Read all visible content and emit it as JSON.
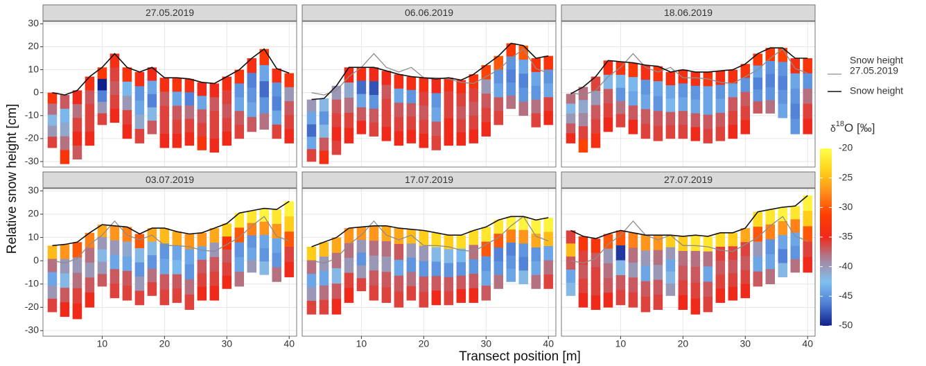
{
  "chart_data": {
    "type": "stacked_column_facets",
    "x_label": "Transect position [m]",
    "y_label": "Relative snow height [cm]",
    "xlim": [
      0.5,
      41.2
    ],
    "xticks": [
      10,
      20,
      30,
      40
    ],
    "ylim": [
      -32.4,
      31
    ],
    "yticks": [
      -30,
      -20,
      -10,
      0,
      10,
      20,
      30
    ],
    "grid": true,
    "x": [
      2,
      4,
      6,
      8,
      10,
      12,
      14,
      16,
      18,
      20,
      22,
      24,
      26,
      28,
      30,
      32,
      34,
      36,
      38,
      40
    ],
    "line": {
      "name": "Snow height",
      "color": "#111111"
    },
    "reference": {
      "name_lines": [
        "Snow height",
        "27.05.2019"
      ],
      "color": "#8c8c8c",
      "values": [
        0,
        -1,
        1,
        7,
        11,
        17,
        11,
        9,
        11,
        6.5,
        6.5,
        6,
        4.5,
        4,
        7,
        10,
        15,
        19,
        10.5,
        8.5
      ]
    },
    "colorbar": {
      "title": {
        "pre": "δ",
        "sup": "18",
        "post": "O [‰]"
      },
      "lim": [
        -50,
        -20
      ],
      "ticks": [
        -20,
        -25,
        -30,
        -35,
        -40,
        -45,
        -50
      ],
      "colors": [
        "#10208b",
        "#4f7fd6",
        "#80c0f0",
        "#a8839b",
        "#f02a1a",
        "#ff3d00",
        "#ff8c1a",
        "#ffd21a",
        "#ffff4a"
      ]
    },
    "facets": [
      {
        "title": "27.05.2019",
        "snow_height": [
          0,
          -1,
          1,
          7,
          11,
          17,
          11,
          9,
          11,
          6.5,
          6.5,
          6,
          4.5,
          4,
          7,
          10,
          15,
          19,
          10.5,
          8.5
        ],
        "bottom": [
          -24,
          -31,
          -29,
          -23,
          -14,
          -13,
          -20,
          -22,
          -18,
          -24,
          -24,
          -23,
          -25,
          -26,
          -23,
          -20,
          -17,
          -16,
          -20,
          -22
        ],
        "d18O": [
          [
            -33,
            -38,
            -42,
            -40,
            -36
          ],
          [
            -37,
            -43,
            -41,
            -38,
            -33
          ],
          [
            -35,
            -38,
            -36,
            -35,
            -37
          ],
          [
            -34,
            -37,
            -36,
            -36,
            -35
          ],
          [
            -32,
            -50,
            -46,
            -40,
            -36
          ],
          [
            -34,
            -36,
            -37,
            -36,
            -35
          ],
          [
            -33,
            -43,
            -40,
            -36,
            -35
          ],
          [
            -34,
            -45,
            -44,
            -41,
            -36
          ],
          [
            -35,
            -44,
            -46,
            -42,
            -37
          ],
          [
            -34,
            -37,
            -36,
            -36,
            -35
          ],
          [
            -33,
            -44,
            -37,
            -36,
            -35
          ],
          [
            -34,
            -46,
            -38,
            -36,
            -35
          ],
          [
            -35,
            -44,
            -37,
            -36,
            -33
          ],
          [
            -35,
            -37,
            -36,
            -36,
            -35
          ],
          [
            -34,
            -36,
            -37,
            -36,
            -35
          ],
          [
            -33,
            -45,
            -44,
            -37,
            -36
          ],
          [
            -34,
            -46,
            -45,
            -44,
            -37
          ],
          [
            -32,
            -44,
            -47,
            -45,
            -38
          ],
          [
            -34,
            -45,
            -46,
            -44,
            -36
          ],
          [
            -33,
            -40,
            -37,
            -36,
            -35
          ]
        ]
      },
      {
        "title": "06.06.2019",
        "snow_height": [
          -3,
          -2.5,
          3,
          11,
          11,
          11,
          9.5,
          8,
          7,
          6.5,
          6,
          6.5,
          5.5,
          8,
          12,
          16,
          21.5,
          20.5,
          15,
          16
        ],
        "bottom": [
          -30,
          -31,
          -27,
          -22,
          -18,
          -19,
          -21,
          -23,
          -22,
          -24,
          -25,
          -23,
          -23,
          -22,
          -19,
          -14,
          -7,
          -10,
          -15,
          -14
        ],
        "d18O": [
          [
            -40,
            -44,
            -47,
            -44,
            -36
          ],
          [
            -42,
            -45,
            -42,
            -37,
            -34
          ],
          [
            -40,
            -37,
            -36,
            -35,
            -36
          ],
          [
            -35,
            -41,
            -38,
            -36,
            -35
          ],
          [
            -34,
            -47,
            -44,
            -37,
            -35
          ],
          [
            -35,
            -48,
            -45,
            -37,
            -36
          ],
          [
            -35,
            -37,
            -36,
            -36,
            -35
          ],
          [
            -34,
            -44,
            -37,
            -36,
            -35
          ],
          [
            -34,
            -45,
            -37,
            -36,
            -35
          ],
          [
            -34,
            -36,
            -37,
            -36,
            -35
          ],
          [
            -35,
            -45,
            -44,
            -37,
            -36
          ],
          [
            -34,
            -36,
            -36,
            -35,
            -35
          ],
          [
            -34,
            -36,
            -37,
            -36,
            -35
          ],
          [
            -33,
            -36,
            -37,
            -36,
            -35
          ],
          [
            -31,
            -40,
            -37,
            -36,
            -35
          ],
          [
            -30,
            -45,
            -44,
            -37,
            -36
          ],
          [
            -32,
            -45,
            -46,
            -45,
            -38
          ],
          [
            -30,
            -44,
            -46,
            -45,
            -38
          ],
          [
            -33,
            -44,
            -45,
            -38,
            -36
          ],
          [
            -33,
            -45,
            -44,
            -36,
            -35
          ]
        ]
      },
      {
        "title": "18.06.2019",
        "snow_height": [
          -0.5,
          2.5,
          7,
          14,
          13.5,
          13,
          12,
          11.5,
          9,
          10,
          9,
          9,
          9.5,
          10,
          12.5,
          17,
          19.5,
          19.5,
          15,
          15
        ],
        "bottom": [
          -22,
          -26,
          -24,
          -17,
          -15,
          -18,
          -20,
          -21,
          -20,
          -20,
          -21,
          -22,
          -21,
          -20,
          -18,
          -9,
          -9,
          -11,
          -18,
          -18
        ],
        "d18O": [
          [
            -38,
            -42,
            -40,
            -37,
            -35
          ],
          [
            -38,
            -41,
            -39,
            -36,
            -31
          ],
          [
            -36,
            -40,
            -37,
            -36,
            -34
          ],
          [
            -34,
            -42,
            -37,
            -36,
            -35
          ],
          [
            -33,
            -43,
            -45,
            -38,
            -36
          ],
          [
            -32,
            -43,
            -44,
            -37,
            -35
          ],
          [
            -34,
            -45,
            -44,
            -37,
            -36
          ],
          [
            -33,
            -44,
            -45,
            -37,
            -36
          ],
          [
            -34,
            -44,
            -43,
            -37,
            -36
          ],
          [
            -34,
            -45,
            -44,
            -37,
            -36
          ],
          [
            -34,
            -45,
            -44,
            -37,
            -35
          ],
          [
            -33,
            -44,
            -44,
            -37,
            -36
          ],
          [
            -34,
            -45,
            -44,
            -37,
            -36
          ],
          [
            -34,
            -44,
            -37,
            -36,
            -35
          ],
          [
            -33,
            -45,
            -37,
            -36,
            -35
          ],
          [
            -32,
            -44,
            -46,
            -45,
            -37
          ],
          [
            -32,
            -45,
            -46,
            -45,
            -38
          ],
          [
            -31,
            -45,
            -46,
            -45,
            -44
          ],
          [
            -34,
            -44,
            -45,
            -46,
            -45
          ],
          [
            -33,
            -45,
            -38,
            -36,
            -35
          ]
        ]
      },
      {
        "title": "03.07.2019",
        "snow_height": [
          6.5,
          7,
          8,
          12,
          15.5,
          15,
          14.5,
          11.5,
          14,
          14,
          12.5,
          11.5,
          12,
          14,
          16,
          20.5,
          21.5,
          22.5,
          22,
          25.5
        ],
        "bottom": [
          -22,
          -24,
          -25,
          -20,
          -11,
          -16,
          -17,
          -19,
          -15,
          -19,
          -18,
          -21,
          -17,
          -17,
          -12,
          -11,
          -5,
          -6,
          -9,
          -7
        ],
        "d18O": [
          [
            -25,
            -38,
            -44,
            -40,
            -36
          ],
          [
            -27,
            -40,
            -42,
            -37,
            -35
          ],
          [
            -30,
            -40,
            -38,
            -36,
            -35
          ],
          [
            -28,
            -38,
            -40,
            -37,
            -35
          ],
          [
            -26,
            -40,
            -42,
            -40,
            -37
          ],
          [
            -27,
            -40,
            -44,
            -37,
            -36
          ],
          [
            -28,
            -41,
            -44,
            -37,
            -36
          ],
          [
            -30,
            -42,
            -45,
            -40,
            -36
          ],
          [
            -26,
            -42,
            -45,
            -38,
            -36
          ],
          [
            -25,
            -45,
            -44,
            -37,
            -36
          ],
          [
            -26,
            -44,
            -43,
            -37,
            -36
          ],
          [
            -27,
            -44,
            -45,
            -38,
            -36
          ],
          [
            -27,
            -44,
            -37,
            -36,
            -35
          ],
          [
            -26,
            -40,
            -37,
            -36,
            -35
          ],
          [
            -24,
            -33,
            -37,
            -36,
            -35
          ],
          [
            -22,
            -30,
            -45,
            -44,
            -38
          ],
          [
            -22,
            -28,
            -45,
            -44,
            -40
          ],
          [
            -21,
            -27,
            -44,
            -45,
            -42
          ],
          [
            -22,
            -27,
            -44,
            -45,
            -38
          ],
          [
            -21,
            -24,
            -30,
            -36,
            -35
          ]
        ]
      },
      {
        "title": "17.07.2019",
        "snow_height": [
          6,
          8,
          10,
          14,
          14.5,
          15,
          15,
          14,
          13.5,
          13,
          12,
          11,
          11,
          13,
          14.5,
          17.5,
          19,
          19,
          17.5,
          18.5
        ],
        "bottom": [
          -23,
          -23,
          -23,
          -18,
          -13,
          -17,
          -18,
          -20,
          -17,
          -20,
          -19,
          -19,
          -18,
          -18,
          -17,
          -12,
          -9,
          -10,
          -12,
          -12
        ],
        "d18O": [
          [
            -24,
            -38,
            -44,
            -40,
            -36
          ],
          [
            -25,
            -40,
            -44,
            -38,
            -36
          ],
          [
            -26,
            -38,
            -42,
            -37,
            -35
          ],
          [
            -27,
            -38,
            -40,
            -36,
            -35
          ],
          [
            -27,
            -40,
            -45,
            -40,
            -36
          ],
          [
            -27,
            -38,
            -40,
            -37,
            -36
          ],
          [
            -26,
            -38,
            -40,
            -37,
            -36
          ],
          [
            -26,
            -37,
            -44,
            -37,
            -36
          ],
          [
            -25,
            -40,
            -45,
            -38,
            -36
          ],
          [
            -24,
            -40,
            -45,
            -37,
            -36
          ],
          [
            -23,
            -42,
            -45,
            -37,
            -35
          ],
          [
            -24,
            -42,
            -45,
            -37,
            -36
          ],
          [
            -23,
            -43,
            -45,
            -37,
            -35
          ],
          [
            -23,
            -38,
            -45,
            -37,
            -35
          ],
          [
            -22,
            -30,
            -45,
            -44,
            -37
          ],
          [
            -22,
            -30,
            -46,
            -45,
            -38
          ],
          [
            -21,
            -28,
            -46,
            -45,
            -44
          ],
          [
            -21,
            -27,
            -45,
            -46,
            -42
          ],
          [
            -21,
            -26,
            -45,
            -44,
            -38
          ],
          [
            -21,
            -25,
            -44,
            -38,
            -36
          ]
        ]
      },
      {
        "title": "27.07.2019",
        "snow_height": [
          13,
          10.5,
          9.5,
          11.5,
          13,
          12,
          11,
          11,
          11,
          10.5,
          11,
          10.5,
          12,
          12,
          14,
          21,
          22,
          23,
          23.5,
          28
        ],
        "bottom": [
          -15,
          -20,
          -21,
          -20,
          -19,
          -20,
          -22,
          -21,
          -15,
          -21,
          -23,
          -22,
          -18,
          -17,
          -16,
          -11,
          -10,
          -7,
          -5,
          -5
        ],
        "d18O": [
          [
            -36,
            -25,
            -37,
            -44,
            -42
          ],
          [
            -33,
            -36,
            -37,
            -36,
            -35
          ],
          [
            -33,
            -37,
            -36,
            -36,
            -35
          ],
          [
            -30,
            -40,
            -38,
            -37,
            -35
          ],
          [
            -30,
            -49,
            -42,
            -37,
            -36
          ],
          [
            -28,
            -38,
            -40,
            -37,
            -36
          ],
          [
            -27,
            -40,
            -44,
            -37,
            -36
          ],
          [
            -27,
            -38,
            -40,
            -37,
            -36
          ],
          [
            -24,
            -40,
            -44,
            -42,
            -40
          ],
          [
            -24,
            -38,
            -37,
            -36,
            -35
          ],
          [
            -22,
            -38,
            -37,
            -36,
            -35
          ],
          [
            -22,
            -38,
            -44,
            -37,
            -36
          ],
          [
            -23,
            -36,
            -37,
            -36,
            -35
          ],
          [
            -24,
            -36,
            -37,
            -36,
            -35
          ],
          [
            -26,
            -36,
            -37,
            -36,
            -35
          ],
          [
            -23,
            -30,
            -40,
            -44,
            -37
          ],
          [
            -22,
            -28,
            -45,
            -44,
            -38
          ],
          [
            -21,
            -27,
            -44,
            -46,
            -42
          ],
          [
            -22,
            -28,
            -44,
            -45,
            -38
          ],
          [
            -21,
            -24,
            -30,
            -36,
            -35
          ]
        ]
      }
    ]
  }
}
